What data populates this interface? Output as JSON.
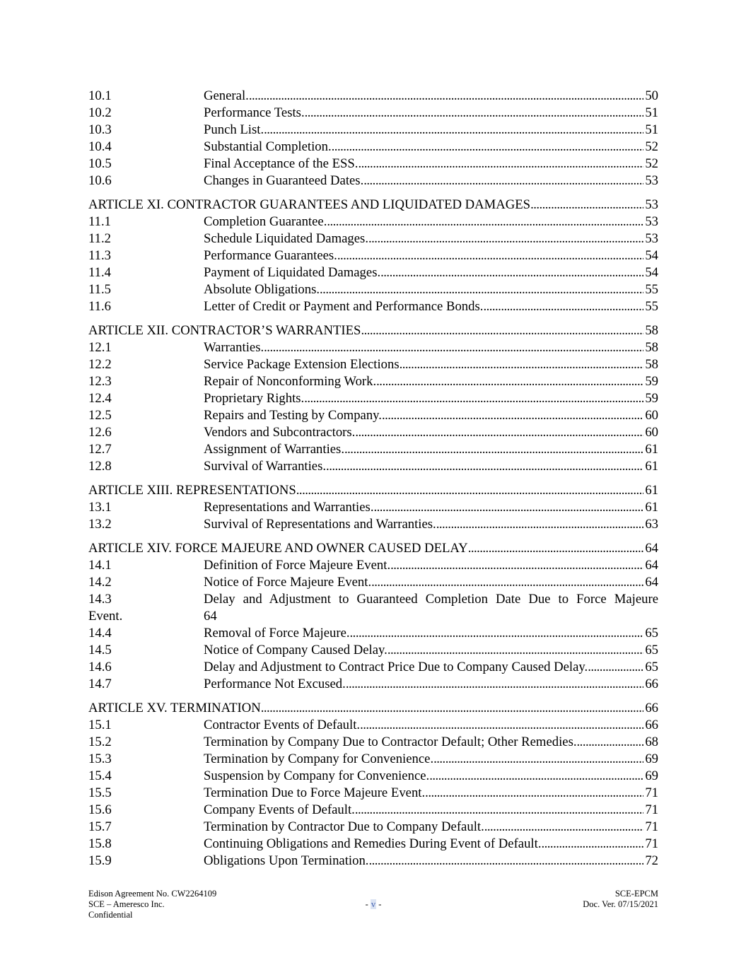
{
  "toc": [
    {
      "article": null,
      "items": [
        {
          "num": "10.1",
          "title": "General. ",
          "page": "50"
        },
        {
          "num": "10.2",
          "title": "Performance Tests. ",
          "page": "51"
        },
        {
          "num": "10.3",
          "title": "Punch List.",
          "page": "51"
        },
        {
          "num": "10.4",
          "title": "Substantial Completion. ",
          "page": "52"
        },
        {
          "num": "10.5",
          "title": "Final Acceptance of the ESS. ",
          "page": "52"
        },
        {
          "num": "10.6",
          "title": "Changes in Guaranteed Dates.",
          "page": "53"
        }
      ]
    },
    {
      "article": {
        "title": "ARTICLE XI. CONTRACTOR GUARANTEES AND LIQUIDATED DAMAGES",
        "page": "53"
      },
      "items": [
        {
          "num": "11.1",
          "title": "Completion Guarantee.",
          "page": "53"
        },
        {
          "num": "11.2",
          "title": "Schedule Liquidated Damages. ",
          "page": "53"
        },
        {
          "num": "11.3",
          "title": "Performance Guarantees.",
          "page": "54"
        },
        {
          "num": "11.4",
          "title": "Payment of Liquidated Damages. ",
          "page": "54"
        },
        {
          "num": "11.5",
          "title": "Absolute Obligations.",
          "page": "55"
        },
        {
          "num": "11.6",
          "title": "Letter of Credit or Payment and Performance Bonds. ",
          "page": "55"
        }
      ]
    },
    {
      "article": {
        "title": "ARTICLE XII. CONTRACTOR’S WARRANTIES ",
        "page": "58"
      },
      "items": [
        {
          "num": "12.1",
          "title": "Warranties. ",
          "page": "58"
        },
        {
          "num": "12.2",
          "title": "Service Package Extension Elections",
          "page": "58"
        },
        {
          "num": "12.3",
          "title": "Repair of Nonconforming Work. ",
          "page": "59"
        },
        {
          "num": "12.4",
          "title": "Proprietary Rights.",
          "page": "59"
        },
        {
          "num": "12.5",
          "title": "Repairs and Testing by Company. ",
          "page": "60"
        },
        {
          "num": "12.6",
          "title": "Vendors and Subcontractors.",
          "page": "60"
        },
        {
          "num": "12.7",
          "title": "Assignment of Warranties. ",
          "page": "61"
        },
        {
          "num": "12.8",
          "title": "Survival of Warranties.",
          "page": "61"
        }
      ]
    },
    {
      "article": {
        "title": "ARTICLE XIII. REPRESENTATIONS",
        "page": "61"
      },
      "items": [
        {
          "num": "13.1",
          "title": "Representations and Warranties. ",
          "page": "61"
        },
        {
          "num": "13.2",
          "title": "Survival of Representations and Warranties. ",
          "page": "63"
        }
      ]
    },
    {
      "article": {
        "title": "ARTICLE XIV. FORCE MAJEURE AND OWNER CAUSED DELAY ",
        "page": "64"
      },
      "items": [
        {
          "num": "14.1",
          "title": "Definition of Force Majeure Event. ",
          "page": "64"
        },
        {
          "num": "14.2",
          "title": "Notice of Force Majeure Event. ",
          "page": "64"
        },
        {
          "num": "14.3",
          "title": "Delay and Adjustment to Guaranteed Completion Date Due to Force Majeure",
          "title_cont": "Event.",
          "page": "64",
          "wrapped": true
        },
        {
          "num": "14.4",
          "title": "Removal of Force Majeure.",
          "page": "65"
        },
        {
          "num": "14.5",
          "title": "Notice of Company Caused Delay. ",
          "page": "65"
        },
        {
          "num": "14.6",
          "title": "Delay and Adjustment to Contract Price Due to Company Caused Delay. ",
          "page": "65"
        },
        {
          "num": "14.7",
          "title": "Performance Not Excused. ",
          "page": "66"
        }
      ]
    },
    {
      "article": {
        "title": "ARTICLE XV. TERMINATION ",
        "page": "66"
      },
      "items": [
        {
          "num": "15.1",
          "title": "Contractor Events of Default.",
          "page": "66"
        },
        {
          "num": "15.2",
          "title": "Termination by Company Due to Contractor Default; Other Remedies.",
          "page": "68"
        },
        {
          "num": "15.3",
          "title": "Termination by Company for Convenience. ",
          "page": "69"
        },
        {
          "num": "15.4",
          "title": "Suspension by Company for Convenience.",
          "page": "69"
        },
        {
          "num": "15.5",
          "title": "Termination Due to Force Majeure Event.",
          "page": "71"
        },
        {
          "num": "15.6",
          "title": "Company Events of Default. ",
          "page": "71"
        },
        {
          "num": "15.7",
          "title": "Termination by Contractor Due to Company Default.",
          "page": "71"
        },
        {
          "num": "15.8",
          "title": "Continuing Obligations and Remedies During Event of Default.",
          "page": "71"
        },
        {
          "num": "15.9",
          "title": "Obligations Upon Termination.",
          "page": "72"
        }
      ]
    }
  ],
  "footer": {
    "left_line1": "Edison Agreement No. CW2264109",
    "left_line2": "SCE – Ameresco Inc.",
    "left_line3": "Confidential",
    "page_prefix": "- ",
    "page_number": "v",
    "page_suffix": " -",
    "right_line1": "SCE-EPCM",
    "right_line2": "Doc. Ver. 07/15/2021"
  }
}
